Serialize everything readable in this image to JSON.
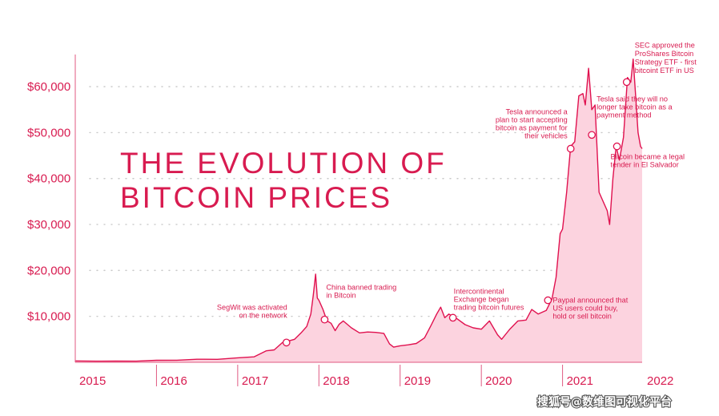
{
  "chart_data": {
    "type": "area",
    "title_lines": [
      "THE EVOLUTION OF",
      "BITCOIN PRICES"
    ],
    "y_ticks": [
      {
        "value": 10000,
        "label": "$10,000"
      },
      {
        "value": 20000,
        "label": "$20,000"
      },
      {
        "value": 30000,
        "label": "$30,000"
      },
      {
        "value": 40000,
        "label": "$40,000"
      },
      {
        "value": 50000,
        "label": "$50,000"
      },
      {
        "value": 60000,
        "label": "$60,000"
      }
    ],
    "x_ticks": [
      "2015",
      "2016",
      "2017",
      "2018",
      "2019",
      "2020",
      "2021",
      "2022"
    ],
    "xlim": [
      2015.0,
      2021.98
    ],
    "ylim": [
      0,
      67000
    ],
    "grid": "dotted horizontal",
    "colors": {
      "line": "#e0114f",
      "fill": "#fcd3df",
      "text": "#d81b50"
    },
    "series": [
      {
        "x": [
          2015.0,
          2015.25,
          2015.5,
          2015.75,
          2016.0,
          2016.25,
          2016.5,
          2016.75,
          2017.0,
          2017.2,
          2017.35,
          2017.45,
          2017.55,
          2017.62,
          2017.7,
          2017.78,
          2017.85,
          2017.9,
          2017.93,
          2017.96,
          2017.98,
          2018.0,
          2018.05,
          2018.1,
          2018.15,
          2018.2,
          2018.25,
          2018.3,
          2018.4,
          2018.5,
          2018.6,
          2018.7,
          2018.8,
          2018.87,
          2018.92,
          2019.0,
          2019.1,
          2019.2,
          2019.3,
          2019.38,
          2019.45,
          2019.5,
          2019.55,
          2019.6,
          2019.7,
          2019.8,
          2019.9,
          2020.0,
          2020.1,
          2020.2,
          2020.25,
          2020.35,
          2020.45,
          2020.55,
          2020.62,
          2020.7,
          2020.8,
          2020.87,
          2020.92,
          2020.97,
          2021.0,
          2021.05,
          2021.1,
          2021.15,
          2021.2,
          2021.25,
          2021.28,
          2021.32,
          2021.36,
          2021.4,
          2021.45,
          2021.5,
          2021.55,
          2021.58,
          2021.62,
          2021.66,
          2021.7,
          2021.75,
          2021.8,
          2021.84,
          2021.87,
          2021.9,
          2021.93,
          2021.96,
          2021.98
        ],
        "y": [
          300,
          250,
          260,
          240,
          430,
          450,
          670,
          640,
          970,
          1180,
          2500,
          2700,
          4300,
          4600,
          5000,
          6400,
          7800,
          10500,
          14500,
          19200,
          14000,
          13500,
          11500,
          9000,
          8500,
          6900,
          8300,
          9000,
          7500,
          6400,
          6600,
          6500,
          6300,
          4000,
          3300,
          3600,
          3800,
          4100,
          5300,
          8000,
          10500,
          12000,
          9700,
          10500,
          9500,
          8200,
          7500,
          7200,
          9000,
          6000,
          5000,
          7200,
          9000,
          9200,
          11500,
          10500,
          11300,
          13800,
          18500,
          28000,
          29000,
          37000,
          47000,
          48000,
          58000,
          58500,
          56000,
          64000,
          55000,
          56000,
          37000,
          35000,
          33000,
          30000,
          40000,
          47000,
          44000,
          49000,
          62000,
          61000,
          66000,
          58000,
          50000,
          47000,
          46500
        ]
      }
    ],
    "annotations": [
      {
        "lines": [
          "SegWit was activated",
          "on the network"
        ],
        "x": 2017.6,
        "y": 4300
      },
      {
        "lines": [
          "China banned trading",
          "in Bitcoin"
        ],
        "x": 2018.07,
        "y": 9300
      },
      {
        "lines": [
          "Intercontinental",
          "Exchange began",
          "trading bitcoin futures"
        ],
        "x": 2019.65,
        "y": 9700
      },
      {
        "lines": [
          "Paypal announced that",
          "US users could buy,",
          "hold or sell bitcoin"
        ],
        "x": 2020.82,
        "y": 13500
      },
      {
        "lines": [
          "Tesla announced a",
          "plan to start accepting",
          "bitcoin as payment for",
          "their vehicles"
        ],
        "x": 2021.1,
        "y": 46500
      },
      {
        "lines": [
          "Tesla said they will no",
          "longer take bitcoin as a",
          "payment method"
        ],
        "x": 2021.36,
        "y": 49500
      },
      {
        "lines": [
          "Bitcoin became a legal",
          "tender in El Salvador"
        ],
        "x": 2021.67,
        "y": 47000
      },
      {
        "lines": [
          "SEC approved the",
          "ProShares Bitcoin",
          "Strategy ETF - first",
          "bitcoint ETF in US"
        ],
        "x": 2021.79,
        "y": 61000
      }
    ]
  },
  "watermark": "搜狐号@数维图可视化平台"
}
